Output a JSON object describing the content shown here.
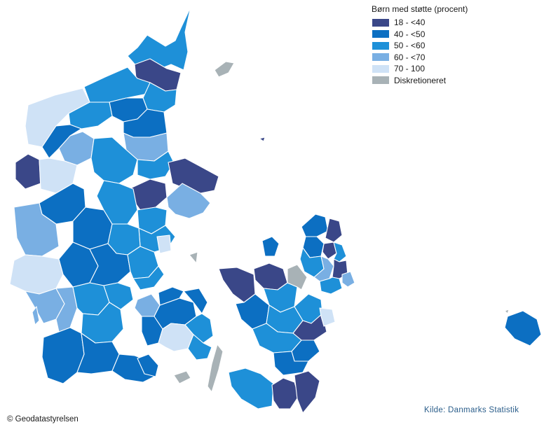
{
  "legend": {
    "title": "Børn med støtte (procent)",
    "classes": [
      {
        "label": "18 - <40",
        "color": "#3a4788"
      },
      {
        "label": "40 - <50",
        "color": "#0c6fc2"
      },
      {
        "label": "50 - <60",
        "color": "#1e90d8"
      },
      {
        "label": "60 - <70",
        "color": "#79afe3"
      },
      {
        "label": "70 - 100",
        "color": "#cfe2f6"
      },
      {
        "label": "Diskretioneret",
        "color": "#a8b2b6"
      }
    ]
  },
  "credit": "© Geodatastyrelsen",
  "source": "Kilde: Danmarks Statistik",
  "icons": {
    "map": "denmark-choropleth-map"
  }
}
